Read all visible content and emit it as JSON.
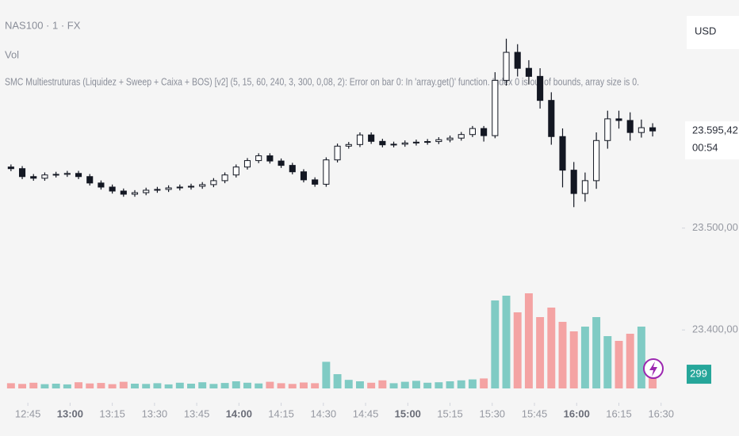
{
  "header": {
    "symbol": "NAS100 · 1 · FX",
    "volume_label": "Vol",
    "indicator_error": "SMC Multiestruturas (Liquidez + Sweep + Caixa + BOS) [v2] (5, 15, 60, 240, 3, 300, 0,08, 2): Error on bar 0: In 'array.get()' function. Index 0 is out of bounds, array size is 0."
  },
  "chart_data": {
    "type": "candlestick",
    "currency": "USD",
    "x": [
      759,
      763,
      767,
      771,
      775,
      779,
      783,
      787,
      791,
      795,
      799,
      803,
      807,
      811,
      815,
      819,
      823,
      827,
      831,
      835,
      839,
      843,
      847,
      851,
      855,
      859,
      863,
      867,
      871,
      875,
      879,
      883,
      887,
      891,
      895,
      899,
      903,
      907,
      911,
      915,
      919,
      923,
      927,
      931,
      935,
      939,
      943,
      947,
      951,
      955,
      959,
      963,
      967,
      971,
      975,
      979,
      983,
      987
    ],
    "open": [
      23560.0,
      23558.4,
      23550.6,
      23549.0,
      23552.2,
      23552.8,
      23553.7,
      23550.6,
      23544.3,
      23540.3,
      23536.4,
      23533.3,
      23534.8,
      23537.2,
      23538.0,
      23539.5,
      23540.3,
      23541.1,
      23542.7,
      23546.6,
      23552.2,
      23560.0,
      23566.3,
      23571.0,
      23565.9,
      23561.6,
      23555.3,
      23547.4,
      23543.1,
      23567.0,
      23580.5,
      23582.1,
      23591.5,
      23585.2,
      23581.8,
      23582.4,
      23583.6,
      23584.4,
      23585.0,
      23586.8,
      23588.4,
      23591.9,
      23597.8,
      23590.8,
      23645.1,
      23672.6,
      23656.9,
      23649.0,
      23625.4,
      23589.9,
      23556.9,
      23534.0,
      23546.6,
      23586.0,
      23607.3,
      23605.7,
      23593.9,
      23598.6
    ],
    "high": [
      23562.5,
      23560.9,
      23553.1,
      23554.7,
      23555.3,
      23556.2,
      23556.2,
      23553.1,
      23546.8,
      23542.8,
      23538.9,
      23537.3,
      23539.7,
      23540.5,
      23542.0,
      23542.8,
      23543.6,
      23545.2,
      23549.1,
      23554.7,
      23562.5,
      23568.8,
      23573.5,
      23573.5,
      23568.4,
      23564.1,
      23557.8,
      23549.9,
      23569.5,
      23583.0,
      23584.6,
      23594.0,
      23594.0,
      23587.7,
      23584.9,
      23586.1,
      23586.9,
      23587.5,
      23589.3,
      23590.9,
      23594.4,
      23600.3,
      23600.3,
      23653.1,
      23686.0,
      23680.6,
      23664.9,
      23657.0,
      23633.4,
      23597.9,
      23564.9,
      23554.6,
      23594.0,
      23615.3,
      23615.3,
      23613.7,
      23606.6,
      23603.0
    ],
    "low": [
      23555.9,
      23548.1,
      23546.5,
      23546.5,
      23549.7,
      23550.3,
      23548.1,
      23541.8,
      23537.8,
      23533.9,
      23530.8,
      23530.8,
      23532.3,
      23534.7,
      23535.5,
      23537.0,
      23537.8,
      23538.6,
      23540.2,
      23544.1,
      23549.7,
      23557.5,
      23563.8,
      23563.4,
      23559.1,
      23552.8,
      23544.9,
      23540.6,
      23540.6,
      23564.5,
      23578.0,
      23579.6,
      23582.7,
      23579.3,
      23579.3,
      23579.9,
      23581.1,
      23581.9,
      23582.5,
      23584.3,
      23585.9,
      23589.4,
      23585.0,
      23588.3,
      23640.0,
      23648.9,
      23641.0,
      23617.4,
      23581.9,
      23540.0,
      23520.6,
      23526.0,
      23538.6,
      23578.0,
      23597.7,
      23585.9,
      23588.9,
      23590.0
    ],
    "close": [
      23558.4,
      23550.6,
      23549.0,
      23552.2,
      23552.8,
      23553.7,
      23550.6,
      23544.3,
      23540.3,
      23536.4,
      23533.3,
      23534.8,
      23537.2,
      23538.0,
      23539.5,
      23540.3,
      23541.1,
      23542.7,
      23546.6,
      23552.2,
      23560.0,
      23566.3,
      23571.0,
      23565.9,
      23561.6,
      23555.3,
      23547.4,
      23543.1,
      23567.0,
      23580.5,
      23582.1,
      23591.5,
      23585.2,
      23581.8,
      23582.4,
      23583.6,
      23584.4,
      23585.0,
      23586.8,
      23588.4,
      23591.9,
      23597.8,
      23590.8,
      23645.1,
      23672.6,
      23656.9,
      23649.0,
      23625.4,
      23589.9,
      23556.9,
      23534.0,
      23546.6,
      23586.0,
      23607.3,
      23605.7,
      23593.9,
      23598.6,
      23595.42
    ],
    "close_label": "23.595,42",
    "countdown": "00:54",
    "volume": [
      110,
      95,
      120,
      90,
      100,
      85,
      130,
      105,
      115,
      90,
      140,
      100,
      95,
      110,
      85,
      120,
      100,
      130,
      95,
      115,
      150,
      120,
      105,
      140,
      110,
      95,
      125,
      110,
      560,
      300,
      180,
      150,
      120,
      170,
      110,
      140,
      160,
      120,
      130,
      150,
      170,
      190,
      210,
      1850,
      1950,
      1600,
      2000,
      1500,
      1700,
      1400,
      1200,
      1300,
      1500,
      1100,
      1000,
      1150,
      1300,
      299
    ],
    "volume_ylim": [
      0,
      3000
    ],
    "up_color": "#ffffff",
    "down_color": "#131722",
    "wick_color": "#131722",
    "volume_up_color": "#80cbc4",
    "volume_down_color": "#f4a3a3",
    "volume_label_color": "#26a69a",
    "ylim": [
      23327,
      23724
    ],
    "yticks": [
      {
        "value": 23500,
        "label": "23.500,00"
      },
      {
        "value": 23400,
        "label": "23.400,00"
      }
    ],
    "xlim": [
      755.1,
      997.4
    ],
    "xticks": [
      {
        "value": 765,
        "label": "12:45"
      },
      {
        "value": 780,
        "label": "13:00"
      },
      {
        "value": 795,
        "label": "13:15"
      },
      {
        "value": 810,
        "label": "13:30"
      },
      {
        "value": 825,
        "label": "13:45"
      },
      {
        "value": 840,
        "label": "14:00"
      },
      {
        "value": 855,
        "label": "14:15"
      },
      {
        "value": 870,
        "label": "14:30"
      },
      {
        "value": 885,
        "label": "14:45"
      },
      {
        "value": 900,
        "label": "15:00"
      },
      {
        "value": 915,
        "label": "15:15"
      },
      {
        "value": 930,
        "label": "15:30"
      },
      {
        "value": 945,
        "label": "15:45"
      },
      {
        "value": 960,
        "label": "16:00"
      },
      {
        "value": 975,
        "label": "16:15"
      },
      {
        "value": 990,
        "label": "16:30"
      }
    ],
    "grid": false
  }
}
